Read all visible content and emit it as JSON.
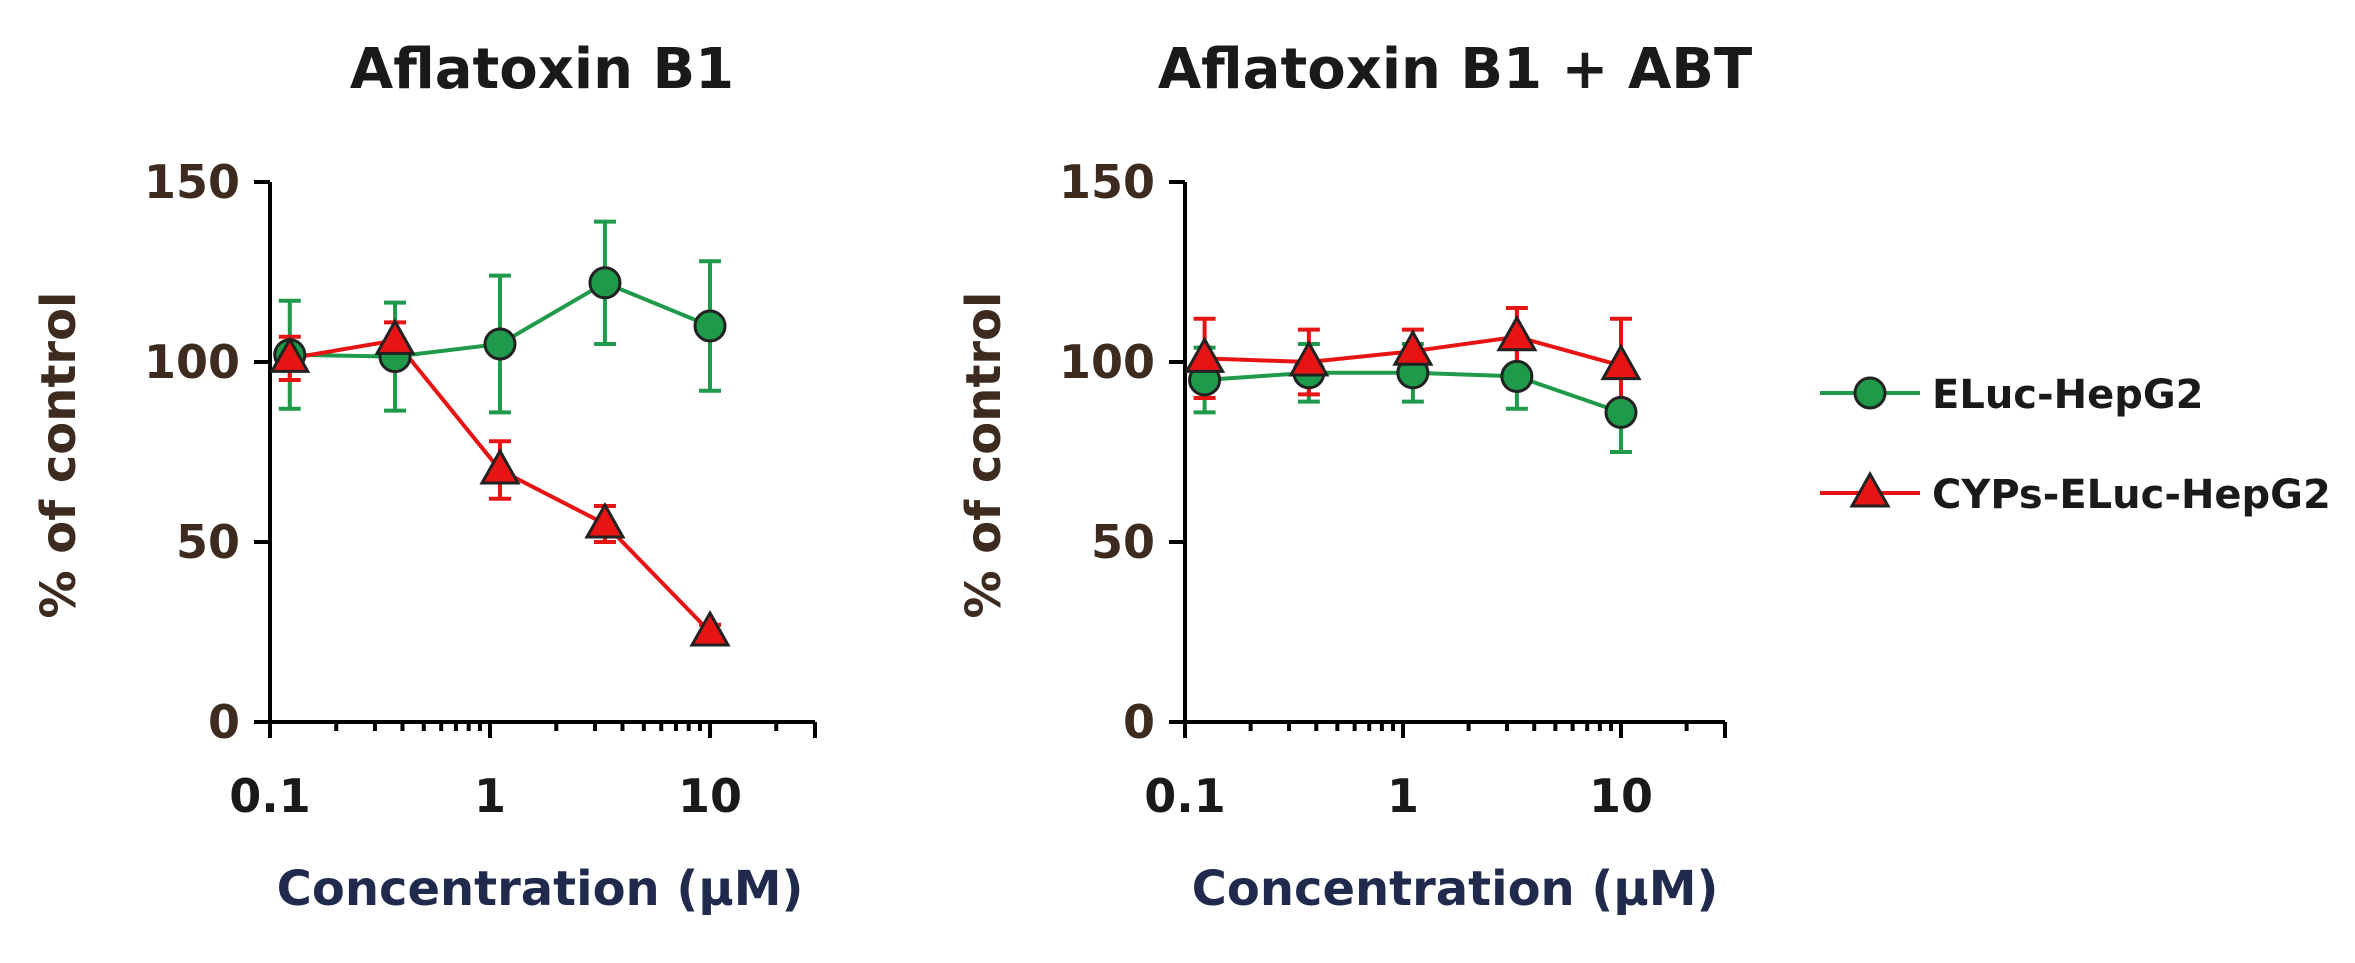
{
  "chart_data": [
    {
      "type": "line",
      "title": "Aflatoxin B1",
      "xlabel": "Concentration (µM)",
      "ylabel": "% of control",
      "xscale": "log",
      "xlim": [
        0.1,
        30
      ],
      "ylim": [
        0,
        150
      ],
      "xticks": [
        "0.1",
        "1",
        "10"
      ],
      "yticks": [
        "0",
        "50",
        "100",
        "150"
      ],
      "series": [
        {
          "name": "ELuc-HepG2",
          "color": "#1f9a4a",
          "marker": "circle",
          "x": [
            0.123,
            0.37,
            1.11,
            3.33,
            10
          ],
          "y": [
            102,
            101.5,
            105,
            122,
            110
          ],
          "err": [
            15,
            15,
            19,
            17,
            18
          ]
        },
        {
          "name": "CYPs-ELuc-HepG2",
          "color": "#e81414",
          "marker": "triangle",
          "x": [
            0.123,
            0.37,
            1.11,
            3.33,
            10
          ],
          "y": [
            101,
            106,
            70,
            55,
            25
          ],
          "err": [
            6,
            5,
            8,
            5,
            2
          ]
        }
      ]
    },
    {
      "type": "line",
      "title": "Aflatoxin B1 + ABT",
      "xlabel": "Concentration (µM)",
      "ylabel": "% of control",
      "xscale": "log",
      "xlim": [
        0.1,
        30
      ],
      "ylim": [
        0,
        150
      ],
      "xticks": [
        "0.1",
        "1",
        "10"
      ],
      "yticks": [
        "0",
        "50",
        "100",
        "150"
      ],
      "series": [
        {
          "name": "ELuc-HepG2",
          "color": "#1f9a4a",
          "marker": "circle",
          "x": [
            0.123,
            0.37,
            1.11,
            3.33,
            10
          ],
          "y": [
            95,
            97,
            97,
            96,
            86
          ],
          "err": [
            9,
            8,
            8,
            9,
            11
          ]
        },
        {
          "name": "CYPs-ELuc-HepG2",
          "color": "#e81414",
          "marker": "triangle",
          "x": [
            0.123,
            0.37,
            1.11,
            3.33,
            10
          ],
          "y": [
            101,
            100,
            103,
            107,
            99
          ],
          "err": [
            11,
            9,
            6,
            8,
            13
          ]
        }
      ]
    }
  ],
  "legend": {
    "entries": [
      {
        "label": "ELuc-HepG2",
        "color": "#1f9a4a",
        "marker": "circle"
      },
      {
        "label": "CYPs-ELuc-HepG2",
        "color": "#e81414",
        "marker": "triangle"
      }
    ],
    "placement": "right"
  }
}
